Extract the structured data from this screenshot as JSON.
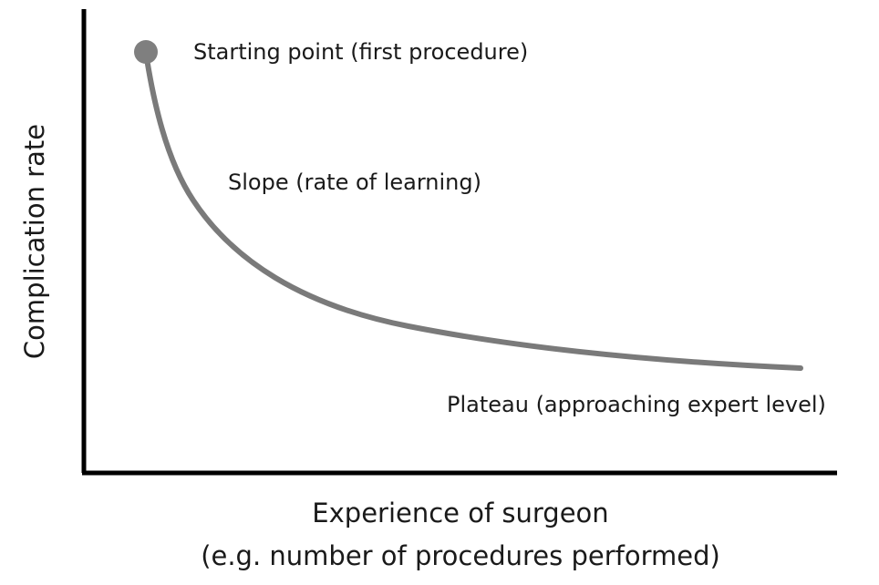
{
  "figure": {
    "y_axis_label": "Complication rate",
    "x_axis_label_line1": "Experience of surgeon",
    "x_axis_label_line2": "(e.g. number of procedures performed)",
    "annotations": {
      "start": "Starting point (first procedure)",
      "slope": "Slope (rate of learning)",
      "plateau": "Plateau (approaching expert level)"
    },
    "colors": {
      "axis": "#000000",
      "curve": "#7a7a7a",
      "start_marker": "#7f7f7f",
      "text": "#1a1a1a"
    }
  }
}
